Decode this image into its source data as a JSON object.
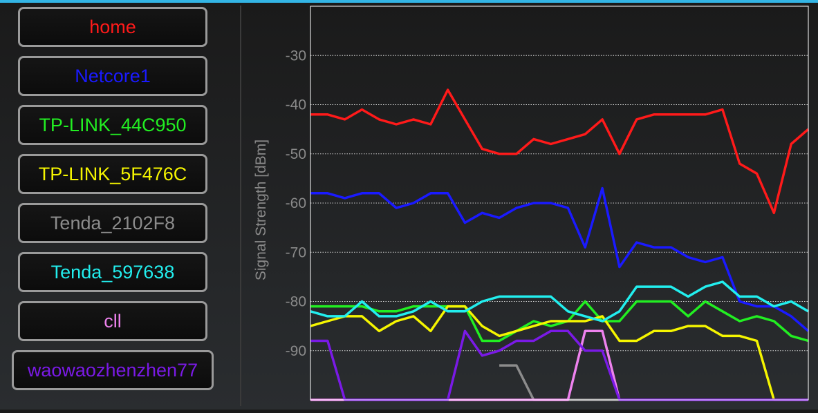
{
  "sidebar": {
    "items": [
      {
        "label": "home",
        "color": "#ff1a1a"
      },
      {
        "label": "Netcore1",
        "color": "#1a1aff"
      },
      {
        "label": "TP-LINK_44C950",
        "color": "#22ee22"
      },
      {
        "label": "TP-LINK_5F476C",
        "color": "#f5f500"
      },
      {
        "label": "Tenda_2102F8",
        "color": "#8c8c8c"
      },
      {
        "label": "Tenda_597638",
        "color": "#22eeee"
      },
      {
        "label": "cll",
        "color": "#ee82ee"
      },
      {
        "label": "waowaozhenzhen77",
        "color": "#7a1ae6"
      }
    ]
  },
  "chart_data": {
    "type": "line",
    "ylabel": "Signal Strength [dBm]",
    "xlabel": "",
    "ylim": [
      -100,
      -20
    ],
    "y_ticks": [
      -30,
      -40,
      -50,
      -60,
      -70,
      -80,
      -90
    ],
    "grid": "horizontal-dotted",
    "x": [
      0,
      1,
      2,
      3,
      4,
      5,
      6,
      7,
      8,
      9,
      10,
      11,
      12,
      13,
      14,
      15,
      16,
      17,
      18,
      19,
      20,
      21,
      22,
      23,
      24,
      25,
      26,
      27,
      28,
      29
    ],
    "series": [
      {
        "name": "home",
        "color": "#ff1a1a",
        "values": [
          -42,
          -42,
          -43,
          -41,
          -43,
          -44,
          -43,
          -44,
          -37,
          -43,
          -49,
          -50,
          -50,
          -47,
          -48,
          -47,
          -46,
          -43,
          -50,
          -43,
          -42,
          -42,
          -42,
          -42,
          -41,
          -52,
          -54,
          -62,
          -48,
          -45
        ]
      },
      {
        "name": "Netcore1",
        "color": "#1a1aff",
        "values": [
          -58,
          -58,
          -59,
          -58,
          -58,
          -61,
          -60,
          -58,
          -58,
          -64,
          -62,
          -63,
          -61,
          -60,
          -60,
          -61,
          -69,
          -57,
          -73,
          -68,
          -69,
          -69,
          -71,
          -72,
          -71,
          -80,
          -81,
          -81,
          -83,
          -86
        ]
      },
      {
        "name": "TP-LINK_44C950",
        "color": "#22ee22",
        "values": [
          -81,
          -81,
          -81,
          -81,
          -82,
          -82,
          -81,
          -81,
          -81,
          -81,
          -88,
          -88,
          -86,
          -84,
          -85,
          -84,
          -80,
          -84,
          -84,
          -80,
          -80,
          -80,
          -83,
          -80,
          -82,
          -84,
          -83,
          -84,
          -87,
          -88
        ]
      },
      {
        "name": "TP-LINK_5F476C",
        "color": "#f5f500",
        "values": [
          -85,
          -84,
          -83,
          -83,
          -86,
          -84,
          -83,
          -86,
          -81,
          -81,
          -85,
          -87,
          -86,
          -85,
          -84,
          -84,
          -84,
          -83,
          -88,
          -88,
          -86,
          -86,
          -85,
          -85,
          -87,
          -87,
          -88,
          -100,
          -100,
          -100
        ]
      },
      {
        "name": "Tenda_2102F8",
        "color": "#8c8c8c",
        "values": [
          null,
          null,
          null,
          null,
          null,
          null,
          null,
          null,
          null,
          null,
          null,
          -93,
          -93,
          -100,
          -100,
          -100,
          -100,
          -100,
          -100,
          null,
          null,
          null,
          null,
          null,
          null,
          null,
          null,
          null,
          null,
          null
        ]
      },
      {
        "name": "Tenda_597638",
        "color": "#22eeee",
        "values": [
          -82,
          -83,
          -83,
          -80,
          -83,
          -83,
          -82,
          -80,
          -82,
          -82,
          -80,
          -79,
          -79,
          -79,
          -79,
          -82,
          -83,
          -84,
          -82,
          -77,
          -77,
          -77,
          -79,
          -77,
          -76,
          -79,
          -79,
          -81,
          -80,
          -82
        ]
      },
      {
        "name": "cll",
        "color": "#ee82ee",
        "values": [
          -100,
          -100,
          -100,
          -100,
          -100,
          -100,
          -100,
          -100,
          -100,
          -100,
          -100,
          -100,
          -100,
          -100,
          -100,
          -100,
          -86,
          -86,
          -100,
          -100,
          -100,
          -100,
          -100,
          -100,
          -100,
          -100,
          -100,
          -100,
          -100,
          -100
        ]
      },
      {
        "name": "waowaozhenzhen77",
        "color": "#7a1ae6",
        "values": [
          -88,
          -88,
          -100,
          -100,
          -100,
          -100,
          -100,
          -100,
          -100,
          -86,
          -91,
          -90,
          -88,
          -88,
          -86,
          -86,
          -90,
          -90,
          -100,
          -100,
          -100,
          -100,
          -100,
          -100,
          -100,
          -100,
          -100,
          -100,
          -100,
          -100
        ]
      }
    ]
  }
}
